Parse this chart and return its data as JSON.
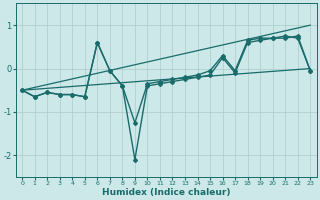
{
  "xlabel": "Humidex (Indice chaleur)",
  "xlim": [
    -0.5,
    23.5
  ],
  "ylim": [
    -2.5,
    1.5
  ],
  "yticks": [
    -2,
    -1,
    0,
    1
  ],
  "xticks": [
    0,
    1,
    2,
    3,
    4,
    5,
    6,
    7,
    8,
    9,
    10,
    11,
    12,
    13,
    14,
    15,
    16,
    17,
    18,
    19,
    20,
    21,
    22,
    23
  ],
  "bg_color": "#cce8e8",
  "line_color": "#1a6b6b",
  "grid_color": "#aacccc",
  "lines": [
    {
      "x": [
        0,
        1,
        2,
        3,
        4,
        5,
        6,
        7,
        8,
        9,
        10,
        11,
        12,
        13,
        14,
        15,
        16,
        17,
        18,
        19,
        20,
        21,
        22,
        23
      ],
      "y": [
        -0.5,
        -0.65,
        -0.55,
        -0.6,
        -0.6,
        -0.65,
        0.6,
        -0.05,
        -0.4,
        -2.1,
        -0.4,
        -0.35,
        -0.3,
        -0.25,
        -0.2,
        -0.15,
        0.25,
        -0.1,
        0.6,
        0.65,
        0.7,
        0.7,
        0.75,
        -0.05
      ],
      "marker": "D",
      "markersize": 2.0,
      "linewidth": 1.0
    },
    {
      "x": [
        0,
        1,
        2,
        3,
        4,
        5,
        6,
        7,
        8,
        9,
        10,
        11,
        12,
        13,
        14,
        15,
        16,
        17,
        18,
        19,
        20,
        21,
        22,
        23
      ],
      "y": [
        -0.5,
        -0.65,
        -0.55,
        -0.6,
        -0.6,
        -0.65,
        0.6,
        -0.05,
        -0.4,
        -1.25,
        -0.35,
        -0.3,
        -0.25,
        -0.2,
        -0.15,
        -0.05,
        0.3,
        -0.05,
        0.65,
        0.7,
        0.7,
        0.75,
        0.7,
        -0.05
      ],
      "marker": "D",
      "markersize": 2.0,
      "linewidth": 1.0
    },
    {
      "x": [
        0,
        23
      ],
      "y": [
        -0.5,
        1.0
      ],
      "marker": null,
      "linewidth": 0.9
    },
    {
      "x": [
        0,
        23
      ],
      "y": [
        -0.5,
        0.0
      ],
      "marker": null,
      "linewidth": 0.9
    }
  ]
}
